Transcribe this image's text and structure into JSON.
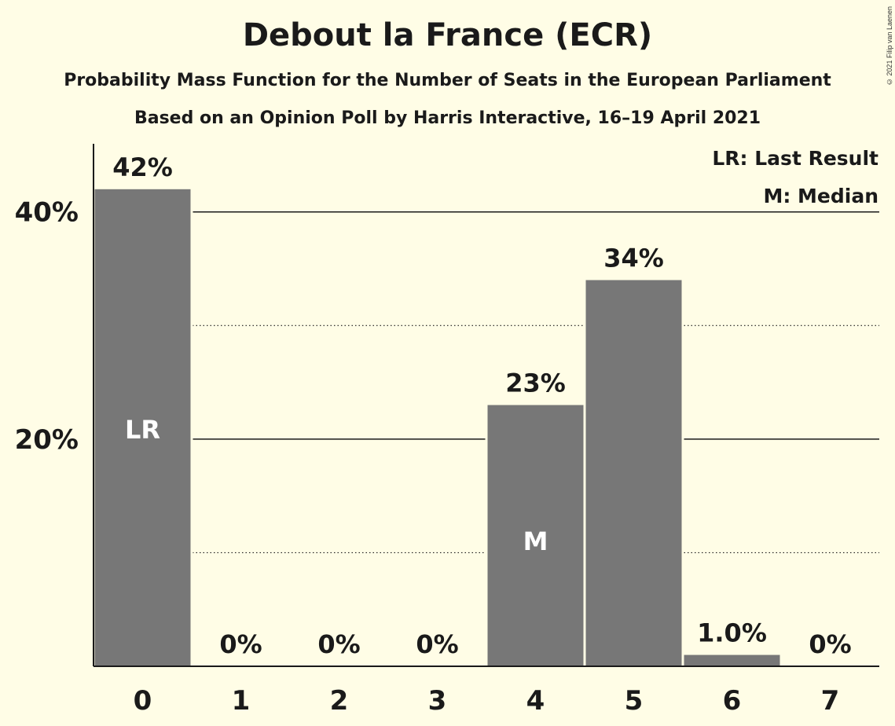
{
  "title": "Debout la France (ECR)",
  "subtitle_1": "Probability Mass Function for the Number of Seats in the European Parliament",
  "subtitle_2": "Based on an Opinion Poll by Harris Interactive, 16–19 April 2021",
  "copyright": "© 2021 Filip van Laenen",
  "colors": {
    "background": "#fffde6",
    "bar": "#777777",
    "text": "#1a1a1a",
    "bar_label": "#ffffff"
  },
  "chart_data": {
    "type": "bar",
    "categories": [
      "0",
      "1",
      "2",
      "3",
      "4",
      "5",
      "6",
      "7"
    ],
    "values": [
      42,
      0,
      0,
      0,
      23,
      34,
      1.0,
      0
    ],
    "value_labels": [
      "42%",
      "0%",
      "0%",
      "0%",
      "23%",
      "34%",
      "1.0%",
      "0%"
    ],
    "bar_markers": {
      "0": "LR",
      "4": "M"
    },
    "ylim": [
      0,
      46
    ],
    "y_ticks": [
      {
        "value": 20,
        "label": "20%",
        "style": "solid"
      },
      {
        "value": 40,
        "label": "40%",
        "style": "solid"
      }
    ],
    "minor_gridlines": [
      10,
      30
    ],
    "legend": [
      "LR: Last Result",
      "M: Median"
    ],
    "legend_position": "top-right"
  }
}
